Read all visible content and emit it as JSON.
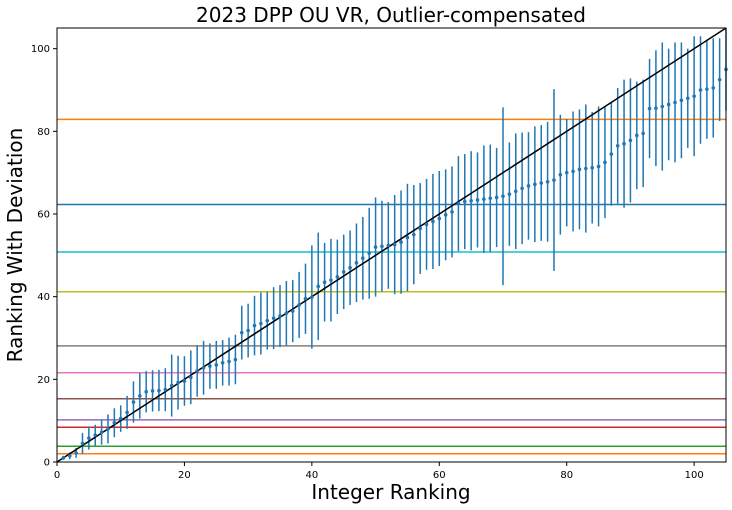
{
  "chart_data": {
    "type": "scatter",
    "title": "2023 DPP OU VR, Outlier-compensated",
    "xlabel": "Integer Ranking",
    "ylabel": "Ranking With Deviation",
    "xlim": [
      0,
      105
    ],
    "ylim": [
      0,
      105
    ],
    "xticks": [
      0,
      20,
      40,
      60,
      80,
      100
    ],
    "yticks": [
      0,
      20,
      40,
      60,
      80,
      100
    ],
    "grid": false,
    "colors": {
      "points": "#1f77b4",
      "errorbars": "#1f77b4",
      "diagonal": "#000000"
    },
    "diagonal_line": {
      "x": [
        0,
        105
      ],
      "y": [
        0,
        105
      ]
    },
    "thresholds": [
      {
        "y": 2.0,
        "color": "#ff7f0e"
      },
      {
        "y": 3.8,
        "color": "#2ca02c"
      },
      {
        "y": 8.4,
        "color": "#d62728"
      },
      {
        "y": 10.2,
        "color": "#9467bd"
      },
      {
        "y": 15.3,
        "color": "#8c564b"
      },
      {
        "y": 21.6,
        "color": "#e377c2"
      },
      {
        "y": 28.1,
        "color": "#7f7f7f"
      },
      {
        "y": 41.2,
        "color": "#bcbd22"
      },
      {
        "y": 50.8,
        "color": "#17becf"
      },
      {
        "y": 62.3,
        "color": "#1f77b4"
      },
      {
        "y": 82.9,
        "color": "#ff7f0e"
      }
    ],
    "series": [
      {
        "x": [
          1,
          2,
          3,
          4,
          5,
          6,
          7,
          8,
          9,
          10,
          11,
          12,
          13,
          14,
          15,
          16,
          17,
          18,
          19,
          20,
          21,
          22,
          23,
          24,
          25,
          26,
          27,
          28,
          29,
          30,
          31,
          32,
          33,
          34,
          35,
          36,
          37,
          38,
          39,
          40,
          41,
          42,
          43,
          44,
          45,
          46,
          47,
          48,
          49,
          50,
          51,
          52,
          53,
          54,
          55,
          56,
          57,
          58,
          59,
          60,
          61,
          62,
          63,
          64,
          65,
          66,
          67,
          68,
          69,
          70,
          71,
          72,
          73,
          74,
          75,
          76,
          77,
          78,
          79,
          80,
          81,
          82,
          83,
          84,
          85,
          86,
          87,
          88,
          89,
          90,
          91,
          92,
          93,
          94,
          95,
          96,
          97,
          98,
          99,
          100,
          101,
          102,
          103,
          104,
          105
        ],
        "y": [
          1.0,
          1.5,
          2.2,
          4.5,
          5.8,
          6.5,
          7.2,
          8.0,
          9.5,
          10.5,
          12.0,
          14.5,
          16.0,
          17.0,
          17.2,
          17.3,
          17.5,
          18.5,
          19.2,
          19.6,
          20.5,
          22.0,
          22.8,
          23.2,
          23.5,
          24.0,
          24.3,
          24.8,
          31.3,
          31.8,
          33.0,
          33.5,
          34.2,
          34.8,
          35.3,
          36.0,
          36.5,
          38.0,
          39.5,
          39.9,
          42.5,
          43.5,
          44.0,
          44.8,
          46.0,
          47.0,
          48.2,
          49.3,
          50.5,
          52.0,
          52.2,
          52.4,
          52.6,
          53.2,
          54.3,
          55.0,
          56.5,
          57.5,
          58.2,
          58.9,
          59.8,
          60.5,
          62.5,
          63.0,
          63.2,
          63.4,
          63.6,
          63.8,
          64.0,
          64.3,
          64.8,
          65.5,
          66.2,
          66.8,
          67.2,
          67.5,
          67.8,
          68.2,
          69.5,
          70.0,
          70.3,
          70.8,
          71.0,
          71.2,
          71.5,
          72.5,
          74.5,
          76.5,
          77.0,
          77.8,
          79.0,
          79.5,
          85.5,
          85.6,
          86.0,
          86.5,
          87.0,
          87.5,
          88.0,
          88.5,
          90.0,
          90.2,
          90.5,
          92.5,
          95.0
        ],
        "err": [
          0.5,
          0.8,
          1.2,
          2.5,
          2.8,
          2.5,
          3.0,
          3.5,
          3.5,
          3.2,
          4.0,
          5.0,
          5.5,
          5.0,
          5.0,
          5.0,
          5.2,
          7.5,
          6.5,
          6.0,
          6.5,
          6.2,
          6.5,
          5.5,
          5.8,
          5.5,
          5.8,
          6.0,
          6.5,
          6.5,
          7.2,
          7.5,
          7.0,
          7.5,
          7.5,
          7.8,
          7.5,
          8.0,
          8.5,
          12.5,
          13.0,
          9.5,
          10.0,
          9.0,
          9.0,
          9.0,
          9.5,
          10.0,
          11.0,
          12.0,
          11.0,
          10.5,
          12.0,
          12.5,
          13.0,
          12.0,
          11.0,
          11.0,
          11.5,
          11.5,
          11.0,
          11.0,
          11.5,
          11.5,
          12.0,
          11.5,
          13.0,
          13.0,
          12.0,
          21.5,
          12.5,
          14.0,
          13.5,
          13.0,
          14.0,
          14.0,
          14.5,
          22.0,
          14.5,
          13.0,
          14.5,
          14.5,
          15.5,
          13.5,
          14.5,
          13.5,
          12.5,
          14.0,
          15.5,
          15.0,
          13.0,
          13.0,
          12.0,
          14.0,
          15.5,
          13.5,
          14.5,
          14.0,
          12.0,
          14.5,
          13.0,
          12.0,
          12.0,
          10.0,
          10.0
        ]
      }
    ]
  }
}
